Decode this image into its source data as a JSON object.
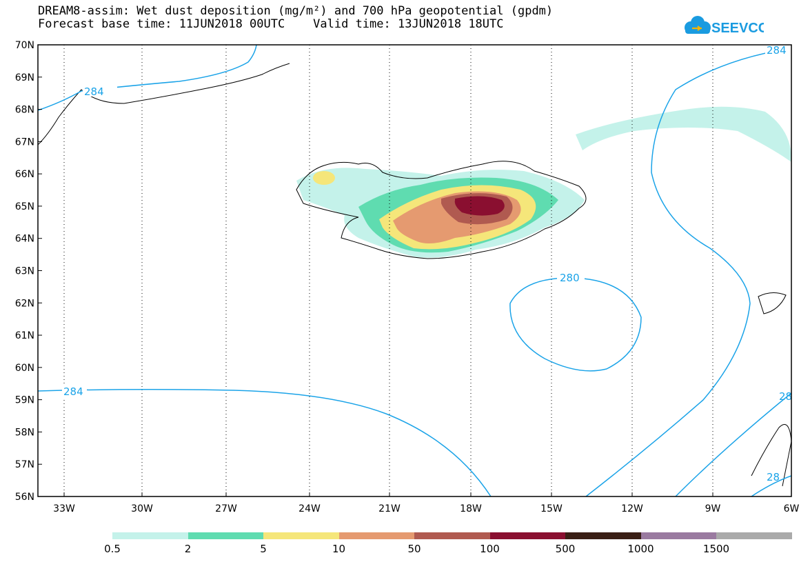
{
  "header": {
    "title_line1": "DREAM8-assim: Wet dust deposition (mg/m²) and 700 hPa geopotential (gpdm)",
    "title_line2": "Forecast base time: 11JUN2018 00UTC    Valid time: 13JUN2018 18UTC"
  },
  "logo": {
    "text": "SEEVCCC",
    "icon": "cloud-icon",
    "color": "#1a9be0"
  },
  "map": {
    "lat_labels": [
      "70N",
      "69N",
      "68N",
      "67N",
      "66N",
      "65N",
      "64N",
      "63N",
      "62N",
      "61N",
      "60N",
      "59N",
      "58N",
      "57N",
      "56N"
    ],
    "lon_labels": [
      "33W",
      "30W",
      "27W",
      "24W",
      "21W",
      "18W",
      "15W",
      "12W",
      "9W",
      "6W"
    ],
    "contour_color": "#1aa3e8",
    "contour_labels": [
      "284",
      "284",
      "280",
      "284",
      "28",
      "28"
    ]
  },
  "colorbar": {
    "colors": [
      "#c4f2ea",
      "#5fdcb0",
      "#f5e67a",
      "#e59a70",
      "#b05a50",
      "#8a0f30",
      "#3a1f15",
      "#9a7aa0",
      "#aaaaaa"
    ],
    "labels": [
      "0.5",
      "2",
      "5",
      "10",
      "50",
      "100",
      "500",
      "1000",
      "1500"
    ]
  }
}
